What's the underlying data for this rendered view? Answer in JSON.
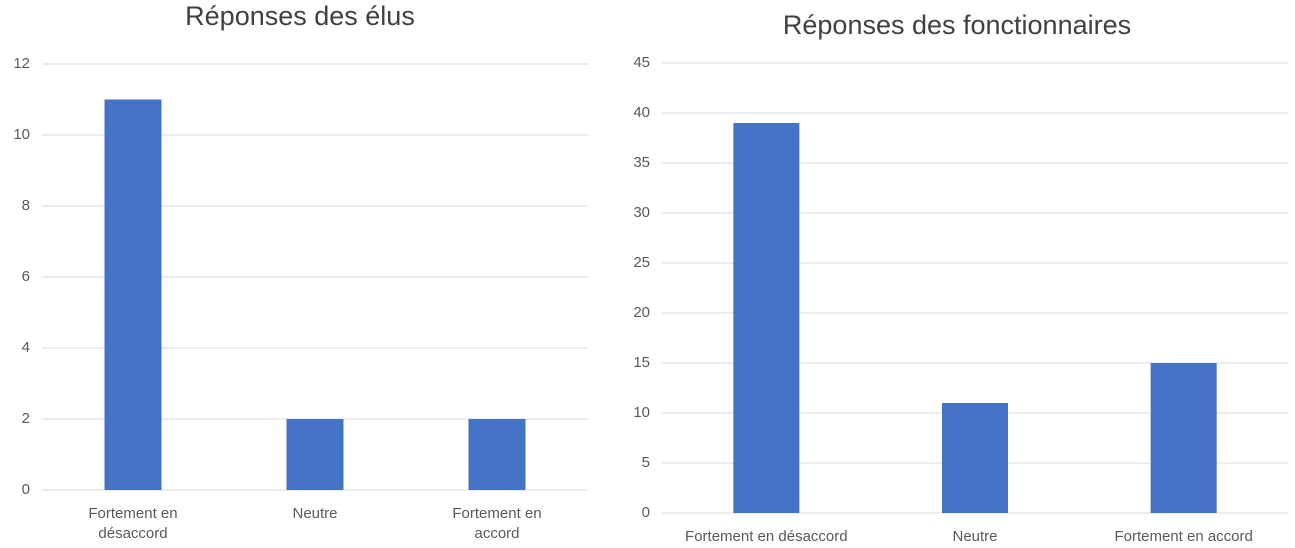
{
  "chart_data": [
    {
      "type": "bar",
      "title": "Réponses des élus",
      "categories": [
        "Fortement en désaccord",
        "Neutre",
        "Fortement en accord"
      ],
      "values": [
        11,
        2,
        2
      ],
      "color": "#4472c4",
      "ylim": [
        0,
        12
      ],
      "yticks": [
        0,
        2,
        4,
        6,
        8,
        10,
        12
      ],
      "grid": true
    },
    {
      "type": "bar",
      "title": "Réponses des fonctionnaires",
      "categories": [
        "Fortement en désaccord",
        "Neutre",
        "Fortement en accord"
      ],
      "values": [
        39,
        11,
        15
      ],
      "color": "#4472c4",
      "ylim": [
        0,
        45
      ],
      "yticks": [
        0,
        5,
        10,
        15,
        20,
        25,
        30,
        35,
        40,
        45
      ],
      "grid": true
    }
  ]
}
